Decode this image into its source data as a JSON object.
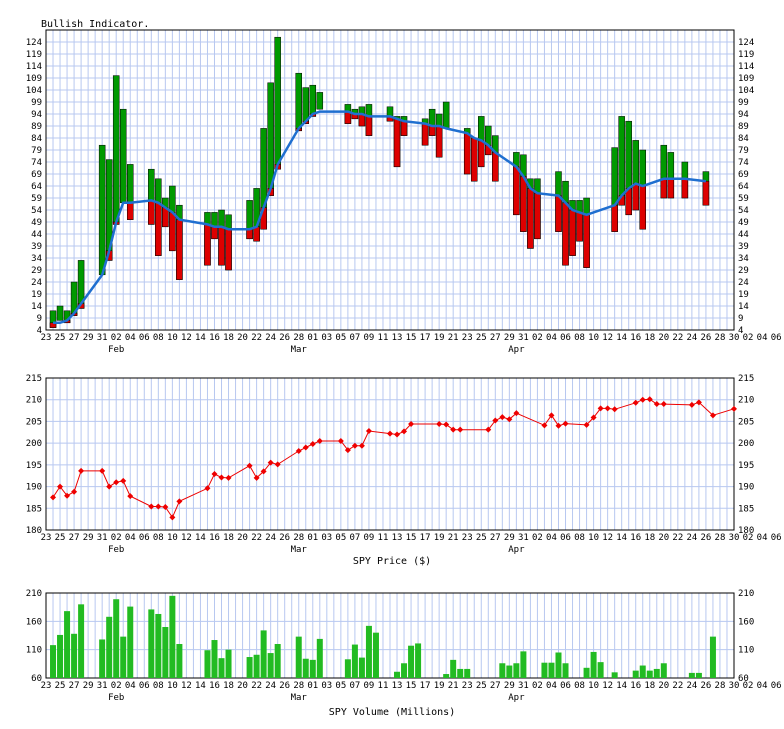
{
  "chart_data": [
    {
      "type": "bar",
      "title": "Bullish Indicator.",
      "xlabel": "",
      "ylabel": "",
      "ylim": [
        4,
        129
      ],
      "yticks": [
        4,
        9,
        14,
        19,
        24,
        29,
        34,
        39,
        44,
        49,
        54,
        59,
        64,
        69,
        74,
        79,
        84,
        89,
        94,
        99,
        104,
        109,
        114,
        119,
        124
      ],
      "grid": true,
      "x_tick_labels": [
        "23",
        "25",
        "27",
        "29",
        "31",
        "02",
        "04",
        "06",
        "08",
        "10",
        "12",
        "14",
        "16",
        "18",
        "20",
        "22",
        "24",
        "26",
        "28",
        "01",
        "03",
        "05",
        "07",
        "09",
        "11",
        "13",
        "15",
        "17",
        "19",
        "21",
        "23",
        "25",
        "27",
        "29",
        "31",
        "02",
        "04",
        "06",
        "08",
        "10",
        "12",
        "14",
        "16",
        "18",
        "20",
        "22",
        "24",
        "26",
        "28",
        "30",
        "02",
        "04",
        "06"
      ],
      "month_labels": [
        {
          "label": "Feb",
          "at": "02"
        },
        {
          "label": "Mar",
          "at": "Mar 01"
        },
        {
          "label": "Apr",
          "at": "Apr 01"
        }
      ],
      "candles": [
        {
          "d": 1,
          "o": 5,
          "c": 12
        },
        {
          "d": 2,
          "o": 8,
          "c": 14
        },
        {
          "d": 3,
          "o": 7,
          "c": 12
        },
        {
          "d": 4,
          "o": 10,
          "c": 24
        },
        {
          "d": 5,
          "o": 13,
          "c": 33
        },
        {
          "d": 8,
          "o": 27,
          "c": 81
        },
        {
          "d": 9,
          "o": 33,
          "c": 75
        },
        {
          "d": 10,
          "o": 48,
          "c": 110
        },
        {
          "d": 11,
          "o": 57,
          "c": 96
        },
        {
          "d": 12,
          "o": 50,
          "c": 73
        },
        {
          "d": 15,
          "o": 48,
          "c": 71
        },
        {
          "d": 16,
          "o": 35,
          "c": 67
        },
        {
          "d": 17,
          "o": 47,
          "c": 59
        },
        {
          "d": 18,
          "o": 37,
          "c": 64
        },
        {
          "d": 19,
          "o": 25,
          "c": 56
        },
        {
          "d": 23,
          "o": 31,
          "c": 53
        },
        {
          "d": 24,
          "o": 42,
          "c": 53
        },
        {
          "d": 25,
          "o": 31,
          "c": 54
        },
        {
          "d": 26,
          "o": 29,
          "c": 52
        },
        {
          "d": 29,
          "o": 42,
          "c": 58
        },
        {
          "d": 30,
          "o": 41,
          "c": 63
        },
        {
          "d": 31,
          "o": 46,
          "c": 88
        },
        {
          "d": 32,
          "o": 60,
          "c": 107
        },
        {
          "d": 33,
          "o": 71,
          "c": 126
        },
        {
          "d": 36,
          "o": 87,
          "c": 111
        },
        {
          "d": 37,
          "o": 90,
          "c": 105
        },
        {
          "d": 38,
          "o": 93,
          "c": 106
        },
        {
          "d": 39,
          "o": 96,
          "c": 103
        },
        {
          "d": 43,
          "o": 90,
          "c": 98
        },
        {
          "d": 44,
          "o": 92,
          "c": 96
        },
        {
          "d": 45,
          "o": 89,
          "c": 97
        },
        {
          "d": 46,
          "o": 85,
          "c": 98
        },
        {
          "d": 49,
          "o": 91,
          "c": 97
        },
        {
          "d": 50,
          "o": 72,
          "c": 93
        },
        {
          "d": 51,
          "o": 85,
          "c": 93
        },
        {
          "d": 54,
          "o": 81,
          "c": 92
        },
        {
          "d": 55,
          "o": 85,
          "c": 96
        },
        {
          "d": 56,
          "o": 76,
          "c": 94
        },
        {
          "d": 57,
          "o": 88,
          "c": 99
        },
        {
          "d": 60,
          "o": 69,
          "c": 88
        },
        {
          "d": 61,
          "o": 66,
          "c": 84
        },
        {
          "d": 62,
          "o": 72,
          "c": 93
        },
        {
          "d": 63,
          "o": 77,
          "c": 89
        },
        {
          "d": 64,
          "o": 66,
          "c": 85
        },
        {
          "d": 67,
          "o": 52,
          "c": 78
        },
        {
          "d": 68,
          "o": 45,
          "c": 77
        },
        {
          "d": 69,
          "o": 38,
          "c": 67
        },
        {
          "d": 70,
          "o": 42,
          "c": 67
        },
        {
          "d": 73,
          "o": 45,
          "c": 70
        },
        {
          "d": 74,
          "o": 31,
          "c": 66
        },
        {
          "d": 75,
          "o": 35,
          "c": 58
        },
        {
          "d": 76,
          "o": 41,
          "c": 58
        },
        {
          "d": 77,
          "o": 30,
          "c": 59
        },
        {
          "d": 81,
          "o": 45,
          "c": 80
        },
        {
          "d": 82,
          "o": 56,
          "c": 93
        },
        {
          "d": 83,
          "o": 52,
          "c": 91
        },
        {
          "d": 84,
          "o": 54,
          "c": 83
        },
        {
          "d": 85,
          "o": 46,
          "c": 79
        },
        {
          "d": 88,
          "o": 59,
          "c": 81
        },
        {
          "d": 89,
          "o": 59,
          "c": 78
        },
        {
          "d": 91,
          "o": 59,
          "c": 74
        },
        {
          "d": 94,
          "o": 56,
          "c": 70
        }
      ],
      "indicator_line": [
        {
          "d": 1,
          "v": 7
        },
        {
          "d": 2,
          "v": 7
        },
        {
          "d": 3,
          "v": 8
        },
        {
          "d": 4,
          "v": 11
        },
        {
          "d": 5,
          "v": 15
        },
        {
          "d": 8,
          "v": 27
        },
        {
          "d": 9,
          "v": 37
        },
        {
          "d": 10,
          "v": 49
        },
        {
          "d": 11,
          "v": 57
        },
        {
          "d": 12,
          "v": 57
        },
        {
          "d": 15,
          "v": 58
        },
        {
          "d": 16,
          "v": 57
        },
        {
          "d": 17,
          "v": 55
        },
        {
          "d": 18,
          "v": 53
        },
        {
          "d": 19,
          "v": 50
        },
        {
          "d": 23,
          "v": 48
        },
        {
          "d": 24,
          "v": 47
        },
        {
          "d": 25,
          "v": 47
        },
        {
          "d": 26,
          "v": 46
        },
        {
          "d": 29,
          "v": 46
        },
        {
          "d": 30,
          "v": 47
        },
        {
          "d": 31,
          "v": 55
        },
        {
          "d": 32,
          "v": 63
        },
        {
          "d": 33,
          "v": 73
        },
        {
          "d": 36,
          "v": 88
        },
        {
          "d": 37,
          "v": 91
        },
        {
          "d": 38,
          "v": 94
        },
        {
          "d": 39,
          "v": 95
        },
        {
          "d": 43,
          "v": 95
        },
        {
          "d": 44,
          "v": 94
        },
        {
          "d": 45,
          "v": 94
        },
        {
          "d": 46,
          "v": 93
        },
        {
          "d": 49,
          "v": 93
        },
        {
          "d": 50,
          "v": 92
        },
        {
          "d": 51,
          "v": 91
        },
        {
          "d": 54,
          "v": 90
        },
        {
          "d": 55,
          "v": 89
        },
        {
          "d": 56,
          "v": 89
        },
        {
          "d": 57,
          "v": 88
        },
        {
          "d": 60,
          "v": 86
        },
        {
          "d": 61,
          "v": 84
        },
        {
          "d": 62,
          "v": 83
        },
        {
          "d": 63,
          "v": 81
        },
        {
          "d": 64,
          "v": 78
        },
        {
          "d": 67,
          "v": 72
        },
        {
          "d": 68,
          "v": 68
        },
        {
          "d": 69,
          "v": 63
        },
        {
          "d": 70,
          "v": 61
        },
        {
          "d": 73,
          "v": 60
        },
        {
          "d": 74,
          "v": 57
        },
        {
          "d": 75,
          "v": 54
        },
        {
          "d": 76,
          "v": 53
        },
        {
          "d": 77,
          "v": 52
        },
        {
          "d": 81,
          "v": 56
        },
        {
          "d": 82,
          "v": 60
        },
        {
          "d": 83,
          "v": 63
        },
        {
          "d": 84,
          "v": 65
        },
        {
          "d": 85,
          "v": 64
        },
        {
          "d": 88,
          "v": 67
        },
        {
          "d": 89,
          "v": 67
        },
        {
          "d": 91,
          "v": 67
        },
        {
          "d": 94,
          "v": 66
        }
      ]
    },
    {
      "type": "line",
      "title": "",
      "xlabel": "SPY Price ($)",
      "ylabel": "",
      "ylim": [
        180,
        215
      ],
      "yticks": [
        180,
        185,
        190,
        195,
        200,
        205,
        210,
        215
      ],
      "grid": true,
      "month_labels": [
        {
          "label": "Feb",
          "at": "02"
        },
        {
          "label": "Mar",
          "at": "Mar 01"
        },
        {
          "label": "Apr",
          "at": "Apr 01"
        }
      ],
      "series": [
        {
          "values": [
            {
              "d": 1,
              "v": 187.5
            },
            {
              "d": 2,
              "v": 190.0
            },
            {
              "d": 3,
              "v": 187.9
            },
            {
              "d": 4,
              "v": 188.8
            },
            {
              "d": 5,
              "v": 193.6
            },
            {
              "d": 8,
              "v": 193.6
            },
            {
              "d": 9,
              "v": 190.0
            },
            {
              "d": 10,
              "v": 191.0
            },
            {
              "d": 11,
              "v": 191.3
            },
            {
              "d": 12,
              "v": 187.8
            },
            {
              "d": 15,
              "v": 185.4
            },
            {
              "d": 16,
              "v": 185.4
            },
            {
              "d": 17,
              "v": 185.3
            },
            {
              "d": 18,
              "v": 182.9
            },
            {
              "d": 19,
              "v": 186.6
            },
            {
              "d": 23,
              "v": 189.6
            },
            {
              "d": 24,
              "v": 192.9
            },
            {
              "d": 25,
              "v": 192.1
            },
            {
              "d": 26,
              "v": 192.0
            },
            {
              "d": 29,
              "v": 194.8
            },
            {
              "d": 30,
              "v": 192.0
            },
            {
              "d": 31,
              "v": 193.5
            },
            {
              "d": 32,
              "v": 195.5
            },
            {
              "d": 33,
              "v": 195.1
            },
            {
              "d": 36,
              "v": 198.2
            },
            {
              "d": 37,
              "v": 199.0
            },
            {
              "d": 38,
              "v": 199.8
            },
            {
              "d": 39,
              "v": 200.5
            },
            {
              "d": 42,
              "v": 200.5
            },
            {
              "d": 43,
              "v": 198.4
            },
            {
              "d": 44,
              "v": 199.4
            },
            {
              "d": 45,
              "v": 199.4
            },
            {
              "d": 46,
              "v": 202.8
            },
            {
              "d": 49,
              "v": 202.2
            },
            {
              "d": 50,
              "v": 202.0
            },
            {
              "d": 51,
              "v": 202.7
            },
            {
              "d": 52,
              "v": 204.4
            },
            {
              "d": 56,
              "v": 204.4
            },
            {
              "d": 57,
              "v": 204.3
            },
            {
              "d": 58,
              "v": 203.1
            },
            {
              "d": 59,
              "v": 203.1
            },
            {
              "d": 63,
              "v": 203.1
            },
            {
              "d": 64,
              "v": 205.2
            },
            {
              "d": 65,
              "v": 206.0
            },
            {
              "d": 66,
              "v": 205.5
            },
            {
              "d": 67,
              "v": 206.9
            },
            {
              "d": 71,
              "v": 204.1
            },
            {
              "d": 72,
              "v": 206.4
            },
            {
              "d": 73,
              "v": 204.0
            },
            {
              "d": 74,
              "v": 204.5
            },
            {
              "d": 77,
              "v": 204.2
            },
            {
              "d": 78,
              "v": 205.9
            },
            {
              "d": 79,
              "v": 208.0
            },
            {
              "d": 80,
              "v": 208.0
            },
            {
              "d": 81,
              "v": 207.8
            },
            {
              "d": 84,
              "v": 209.3
            },
            {
              "d": 85,
              "v": 210.0
            },
            {
              "d": 86,
              "v": 210.1
            },
            {
              "d": 87,
              "v": 209.0
            },
            {
              "d": 88,
              "v": 209.0
            },
            {
              "d": 92,
              "v": 208.8
            },
            {
              "d": 93,
              "v": 209.4
            },
            {
              "d": 95,
              "v": 206.4
            },
            {
              "d": 98,
              "v": 207.9
            }
          ]
        }
      ]
    },
    {
      "type": "bar",
      "title": "",
      "xlabel": "SPY Volume (Millions)",
      "ylabel": "",
      "ylim": [
        60,
        210
      ],
      "yticks": [
        60,
        110,
        160,
        210
      ],
      "grid": true,
      "month_labels": [
        {
          "label": "Feb",
          "at": "02"
        },
        {
          "label": "Mar",
          "at": "Mar 01"
        },
        {
          "label": "Apr",
          "at": "Apr 01"
        }
      ],
      "values": [
        {
          "d": 1,
          "v": 118
        },
        {
          "d": 2,
          "v": 136
        },
        {
          "d": 3,
          "v": 178
        },
        {
          "d": 4,
          "v": 138
        },
        {
          "d": 5,
          "v": 190
        },
        {
          "d": 8,
          "v": 128
        },
        {
          "d": 9,
          "v": 168
        },
        {
          "d": 10,
          "v": 199
        },
        {
          "d": 11,
          "v": 133
        },
        {
          "d": 12,
          "v": 186
        },
        {
          "d": 15,
          "v": 181
        },
        {
          "d": 16,
          "v": 173
        },
        {
          "d": 17,
          "v": 150
        },
        {
          "d": 18,
          "v": 205
        },
        {
          "d": 19,
          "v": 120
        },
        {
          "d": 23,
          "v": 109
        },
        {
          "d": 24,
          "v": 127
        },
        {
          "d": 25,
          "v": 95
        },
        {
          "d": 26,
          "v": 110
        },
        {
          "d": 29,
          "v": 97
        },
        {
          "d": 30,
          "v": 101
        },
        {
          "d": 31,
          "v": 144
        },
        {
          "d": 32,
          "v": 104
        },
        {
          "d": 33,
          "v": 120
        },
        {
          "d": 36,
          "v": 133
        },
        {
          "d": 37,
          "v": 94
        },
        {
          "d": 38,
          "v": 92
        },
        {
          "d": 39,
          "v": 129
        },
        {
          "d": 43,
          "v": 93
        },
        {
          "d": 44,
          "v": 119
        },
        {
          "d": 45,
          "v": 96
        },
        {
          "d": 46,
          "v": 152
        },
        {
          "d": 47,
          "v": 140
        },
        {
          "d": 50,
          "v": 71
        },
        {
          "d": 51,
          "v": 86
        },
        {
          "d": 52,
          "v": 117
        },
        {
          "d": 53,
          "v": 121
        },
        {
          "d": 57,
          "v": 67
        },
        {
          "d": 58,
          "v": 92
        },
        {
          "d": 59,
          "v": 76
        },
        {
          "d": 60,
          "v": 76
        },
        {
          "d": 65,
          "v": 86
        },
        {
          "d": 66,
          "v": 82
        },
        {
          "d": 67,
          "v": 86
        },
        {
          "d": 68,
          "v": 107
        },
        {
          "d": 71,
          "v": 87
        },
        {
          "d": 72,
          "v": 87
        },
        {
          "d": 73,
          "v": 105
        },
        {
          "d": 74,
          "v": 86
        },
        {
          "d": 77,
          "v": 78
        },
        {
          "d": 78,
          "v": 106
        },
        {
          "d": 79,
          "v": 88
        },
        {
          "d": 81,
          "v": 70
        },
        {
          "d": 84,
          "v": 73
        },
        {
          "d": 85,
          "v": 82
        },
        {
          "d": 86,
          "v": 73
        },
        {
          "d": 87,
          "v": 76
        },
        {
          "d": 88,
          "v": 86
        },
        {
          "d": 92,
          "v": 69
        },
        {
          "d": 93,
          "v": 69
        },
        {
          "d": 95,
          "v": 133
        }
      ]
    }
  ]
}
